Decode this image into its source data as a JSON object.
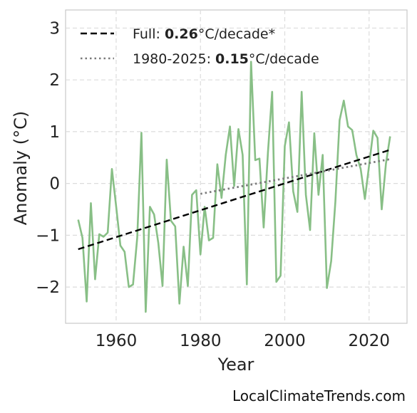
{
  "chart_data": {
    "type": "line",
    "xlabel": "Year",
    "ylabel": "Anomaly (°C)",
    "xlim": [
      1948,
      2029
    ],
    "ylim": [
      -2.7,
      3.35
    ],
    "xticks": [
      1960,
      1980,
      2000,
      2020
    ],
    "yticks": [
      3,
      2,
      1,
      0,
      -1,
      -2
    ],
    "ytick_labels": [
      "3",
      "2",
      "1",
      "0",
      "−1",
      "−2"
    ],
    "grid": true,
    "legend_position": "top-left",
    "series": [
      {
        "style": "solid",
        "color": "#88bf86",
        "x": [
          1951,
          1952,
          1953,
          1954,
          1955,
          1956,
          1957,
          1958,
          1959,
          1960,
          1961,
          1962,
          1963,
          1964,
          1965,
          1966,
          1967,
          1968,
          1969,
          1970,
          1971,
          1972,
          1973,
          1974,
          1975,
          1976,
          1977,
          1978,
          1979,
          1980,
          1981,
          1982,
          1983,
          1984,
          1985,
          1986,
          1987,
          1988,
          1989,
          1990,
          1991,
          1992,
          1993,
          1994,
          1995,
          1996,
          1997,
          1998,
          1999,
          2000,
          2001,
          2002,
          2003,
          2004,
          2005,
          2006,
          2007,
          2008,
          2009,
          2010,
          2011,
          2012,
          2013,
          2014,
          2015,
          2016,
          2017,
          2018,
          2019,
          2020,
          2021,
          2022,
          2023,
          2024,
          2025
        ],
        "y": [
          -0.7,
          -1.05,
          -2.28,
          -0.38,
          -1.85,
          -0.98,
          -1.03,
          -0.95,
          0.28,
          -0.45,
          -1.2,
          -1.32,
          -2.0,
          -1.95,
          -1.05,
          0.98,
          -2.48,
          -0.45,
          -0.6,
          -1.15,
          -1.98,
          0.46,
          -0.72,
          -0.83,
          -2.32,
          -1.22,
          -1.98,
          -0.22,
          -0.13,
          -1.37,
          -0.45,
          -1.1,
          -1.05,
          0.37,
          -0.28,
          0.55,
          1.1,
          -0.05,
          1.05,
          0.55,
          -1.95,
          2.35,
          0.45,
          0.48,
          -0.85,
          0.6,
          1.77,
          -1.9,
          -1.78,
          0.72,
          1.18,
          -0.15,
          -0.55,
          1.77,
          -0.22,
          -0.9,
          0.97,
          -0.22,
          0.55,
          -2.02,
          -1.5,
          -0.35,
          1.22,
          1.6,
          1.1,
          1.03,
          0.55,
          0.28,
          -0.3,
          0.35,
          1.02,
          0.88,
          -0.5,
          0.38,
          0.91
        ]
      },
      {
        "name": "Full",
        "label_value": "0.26",
        "label_unit": "°C/decade*",
        "style": "dashed",
        "color": "#000000",
        "x": [
          1951,
          2025
        ],
        "y": [
          -1.27,
          0.65
        ]
      },
      {
        "name": "1980-2025",
        "label_value": "0.15",
        "label_unit": "°C/decade",
        "style": "dotted",
        "color": "#7a7a7a",
        "x": [
          1980,
          2025
        ],
        "y": [
          -0.2,
          0.47
        ]
      }
    ]
  },
  "legend": {
    "full_prefix": "Full: ",
    "full_value": "0.26",
    "full_unit": "°C/decade*",
    "recent_prefix": "1980-2025: ",
    "recent_value": "0.15",
    "recent_unit": "°C/decade"
  },
  "source_credit": "LocalClimateTrends.com"
}
